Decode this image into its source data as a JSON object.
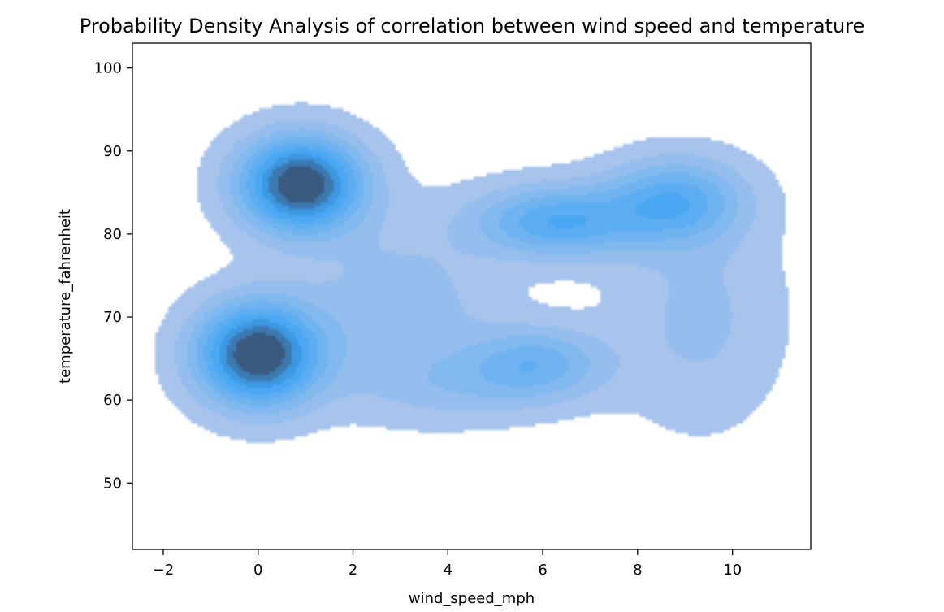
{
  "chart_data": {
    "type": "kde-2d",
    "title": "Probability Density Analysis of correlation between wind speed and temperature",
    "xlabel": "wind_speed_mph",
    "ylabel": "temperature_fahrenheit",
    "xlim": [
      -2.65,
      11.65
    ],
    "ylim": [
      42,
      103
    ],
    "xticks": [
      -2,
      0,
      2,
      4,
      6,
      8,
      10
    ],
    "yticks": [
      50,
      60,
      70,
      80,
      90,
      100
    ],
    "xtick_labels": [
      "−2",
      "0",
      "2",
      "4",
      "6",
      "8",
      "10"
    ],
    "ytick_labels": [
      "50",
      "60",
      "70",
      "80",
      "90",
      "100"
    ],
    "fill": true,
    "grid": false,
    "legend": "none",
    "colormap": {
      "low": "#a8c4ec",
      "mid": "#3ea4f5",
      "high": "#3a5a80",
      "levels": 9,
      "fill_alpha": 1.0
    },
    "density_peaks": [
      {
        "x": 0.9,
        "y": 86.0,
        "sx": 0.9,
        "sy": 4.0,
        "weight": 1.0
      },
      {
        "x": 0.0,
        "y": 65.5,
        "sx": 0.9,
        "sy": 4.3,
        "weight": 1.0
      },
      {
        "x": 6.3,
        "y": 81.5,
        "sx": 1.2,
        "sy": 3.0,
        "weight": 0.55
      },
      {
        "x": 8.8,
        "y": 84.0,
        "sx": 1.0,
        "sy": 3.5,
        "weight": 0.5
      },
      {
        "x": 5.9,
        "y": 64.5,
        "sx": 1.0,
        "sy": 3.0,
        "weight": 0.38
      },
      {
        "x": 3.0,
        "y": 71.0,
        "sx": 1.4,
        "sy": 7.0,
        "weight": 0.22
      },
      {
        "x": 9.3,
        "y": 70.0,
        "sx": 1.2,
        "sy": 9.0,
        "weight": 0.18
      },
      {
        "x": 4.3,
        "y": 61.5,
        "sx": 1.5,
        "sy": 3.0,
        "weight": 0.16
      }
    ]
  }
}
